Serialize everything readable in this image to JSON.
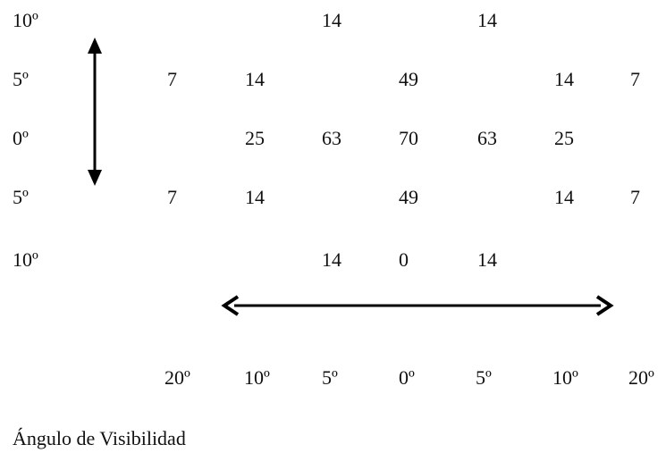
{
  "rows": [
    {
      "angle": "10º",
      "cells": [
        "",
        "",
        "14",
        "",
        "14",
        "",
        ""
      ]
    },
    {
      "angle": "5º",
      "cells": [
        "7",
        "14",
        "",
        "49",
        "",
        "14",
        "7"
      ]
    },
    {
      "angle": "0º",
      "cells": [
        "",
        "25",
        "63",
        "70",
        "63",
        "25",
        ""
      ]
    },
    {
      "angle": "5º",
      "cells": [
        "7",
        "14",
        "",
        "49",
        "",
        "14",
        "7"
      ]
    },
    {
      "angle": "10º",
      "cells": [
        "",
        "",
        "14",
        "0",
        "14",
        "",
        ""
      ]
    }
  ],
  "bottom_axis": [
    "20º",
    "10º",
    "5º",
    "0º",
    "5º",
    "10º",
    "20º"
  ],
  "caption": "Ángulo de Visibilidad",
  "arrow_color": "#000000"
}
